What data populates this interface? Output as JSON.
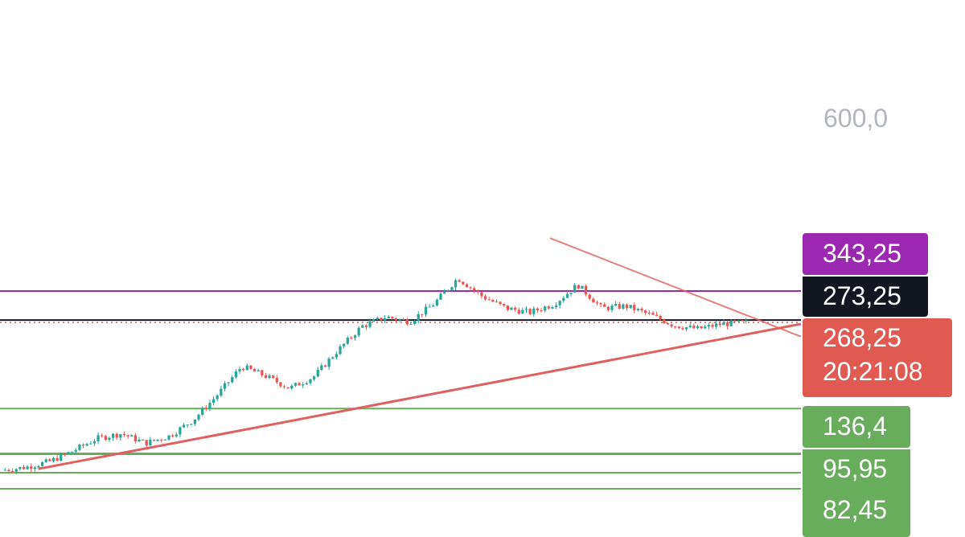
{
  "colors": {
    "background": "#ffffff",
    "up": "#26a69a",
    "down": "#ef5350",
    "purple": "#9c27b0",
    "black": "#131722",
    "red_tag": "#e05a52",
    "green": "#67ad5b",
    "trendline": "#e06060",
    "scale_text": "#b2b5be"
  },
  "price_scale": {
    "top_label": "600,0",
    "tags": {
      "purple": "343,25",
      "black": "273,25",
      "last_price": "268,25",
      "countdown": "20:21:08",
      "green_1": "136,4",
      "green_2": "95,95",
      "green_3": "82,45"
    }
  },
  "chart_data": {
    "type": "candlestick",
    "y_scale": "log",
    "ylim_visible_top_label": 600.0,
    "last_price": 268.25,
    "bar_countdown": "20:21:08",
    "horizontal_levels": [
      {
        "label": "343,25",
        "value": 343.25,
        "color": "purple"
      },
      {
        "label": "273,25",
        "value": 273.25,
        "color": "black"
      },
      {
        "label": "268,25",
        "value": 268.25,
        "color": "red",
        "style": "dotted"
      },
      {
        "label": "136,4",
        "value": 136.4,
        "color": "green"
      },
      {
        "label": "95,95",
        "value": 95.95,
        "color": "green"
      },
      {
        "label": "82,45",
        "value": 82.45,
        "color": "green"
      }
    ],
    "trendlines": [
      {
        "name": "support",
        "from_value": 85,
        "to_value": 265
      },
      {
        "name": "resistance",
        "from_value": 520,
        "to_value": 240
      }
    ],
    "price_path_approx": [
      84,
      86,
      90,
      98,
      108,
      112,
      104,
      110,
      125,
      152,
      190,
      176,
      160,
      175,
      215,
      260,
      280,
      270,
      310,
      380,
      330,
      300,
      290,
      310,
      360,
      300,
      305,
      285,
      262,
      255,
      265,
      268
    ]
  }
}
